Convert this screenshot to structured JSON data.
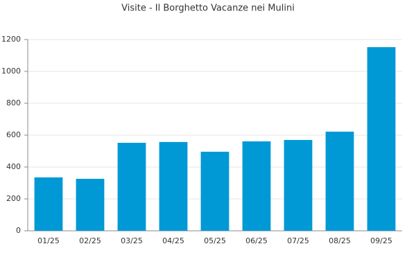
{
  "chart_data": {
    "type": "bar",
    "title": "Visite - Il Borghetto Vacanze nei Mulini",
    "categories": [
      "01/25",
      "02/25",
      "03/25",
      "04/25",
      "05/25",
      "06/25",
      "07/25",
      "08/25",
      "09/25"
    ],
    "values": [
      335,
      326,
      552,
      557,
      496,
      561,
      570,
      622,
      1152
    ],
    "color": "#0099d6",
    "ylim": [
      0,
      1200
    ],
    "yticks": [
      0,
      200,
      400,
      600,
      800,
      1000,
      1200
    ],
    "grid": true
  }
}
